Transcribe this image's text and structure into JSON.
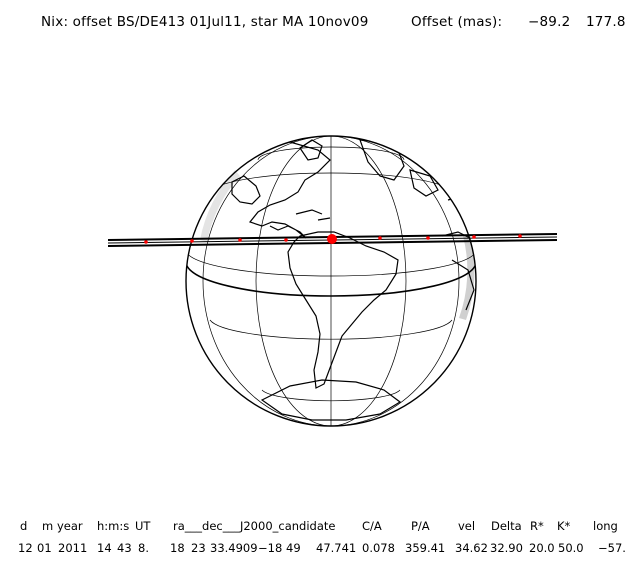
{
  "header": {
    "title": "Nix: offset BS/DE413 01Jul11, star MA 10nov09",
    "offset_label": "Offset (mas):",
    "offset_ra": "−89.2",
    "offset_dec": "177.8"
  },
  "map": {
    "projection": "orthographic",
    "shadow_path_color": "#000000",
    "marker_color": "#ff0000",
    "highlighted_region": "South America"
  },
  "table": {
    "columns": [
      "d",
      "m",
      "year",
      "h:m:s",
      "UT",
      "ra___dec___J2000_candidate",
      "C/A",
      "P/A",
      "vel",
      "Delta",
      "R*",
      "K*",
      "long"
    ],
    "row": [
      "12",
      "01",
      "2011",
      "14",
      "43",
      "8.",
      "18",
      "23",
      "33.4909",
      "−18",
      "49",
      "47.741",
      "0.078",
      "359.41",
      "34.62",
      "32.90",
      "20.0",
      "50.0",
      "−57."
    ]
  }
}
